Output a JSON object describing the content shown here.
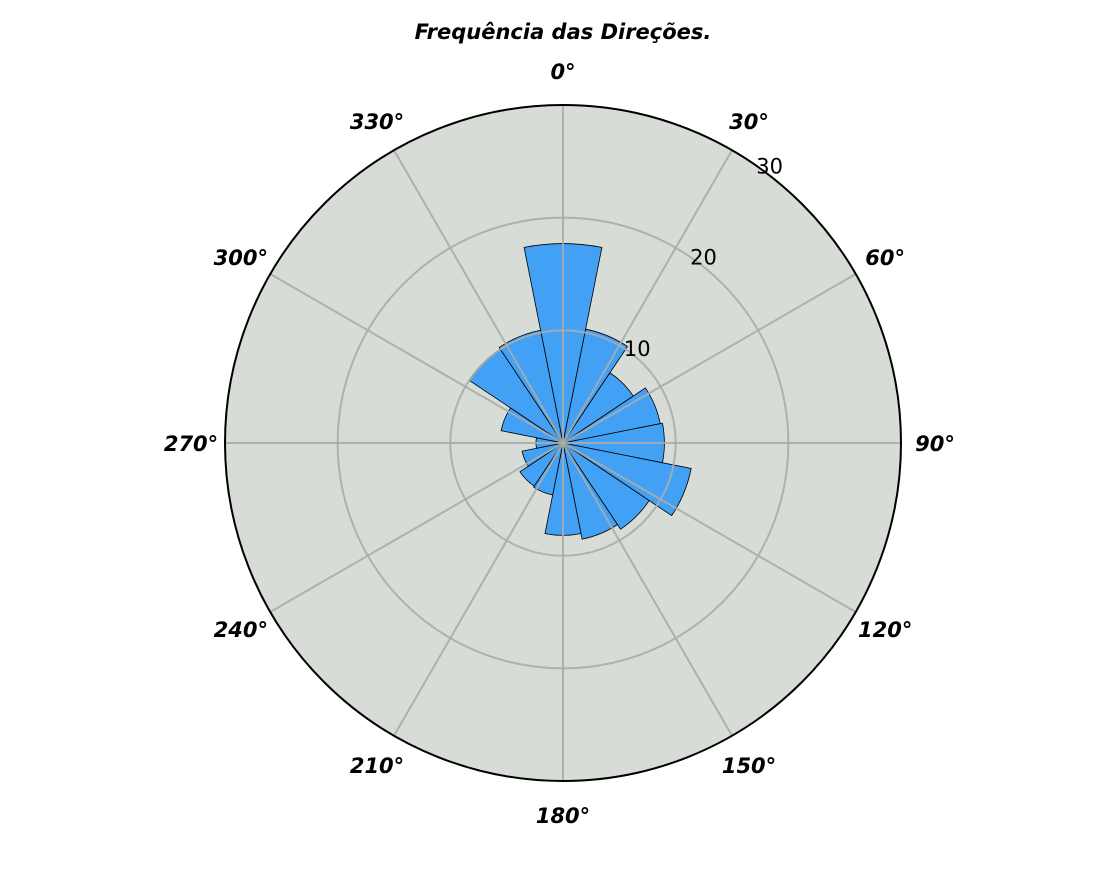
{
  "chart_data": {
    "type": "polar-bar",
    "title": "Frequência das Direções.",
    "theta_labels": [
      "0°",
      "30°",
      "60°",
      "90°",
      "120°",
      "150°",
      "180°",
      "210°",
      "240°",
      "270°",
      "300°",
      "330°"
    ],
    "r_ticks": [
      10,
      20,
      30
    ],
    "r_tick_labels": [
      "10",
      "20",
      "30"
    ],
    "rlim": [
      0,
      30
    ],
    "grid": true,
    "bin_width_deg": 22.5,
    "bins": [
      {
        "direction": 0,
        "value": 17.7
      },
      {
        "direction": 22.5,
        "value": 10.3
      },
      {
        "direction": 45,
        "value": 7.5
      },
      {
        "direction": 67.5,
        "value": 8.8
      },
      {
        "direction": 90,
        "value": 9.0
      },
      {
        "direction": 112.5,
        "value": 11.6
      },
      {
        "direction": 135,
        "value": 9.2
      },
      {
        "direction": 157.5,
        "value": 8.7
      },
      {
        "direction": 180,
        "value": 8.2
      },
      {
        "direction": 202.5,
        "value": 4.7
      },
      {
        "direction": 225,
        "value": 4.6
      },
      {
        "direction": 247.5,
        "value": 3.7
      },
      {
        "direction": 270,
        "value": 2.4
      },
      {
        "direction": 292.5,
        "value": 5.6
      },
      {
        "direction": 315,
        "value": 10.0
      },
      {
        "direction": 337.5,
        "value": 10.2
      }
    ],
    "colors": {
      "bar_fill": "#42a0f5",
      "bar_edge": "#000000",
      "plot_bg": "#d7dcd7",
      "grid": "#a9ada9"
    }
  }
}
